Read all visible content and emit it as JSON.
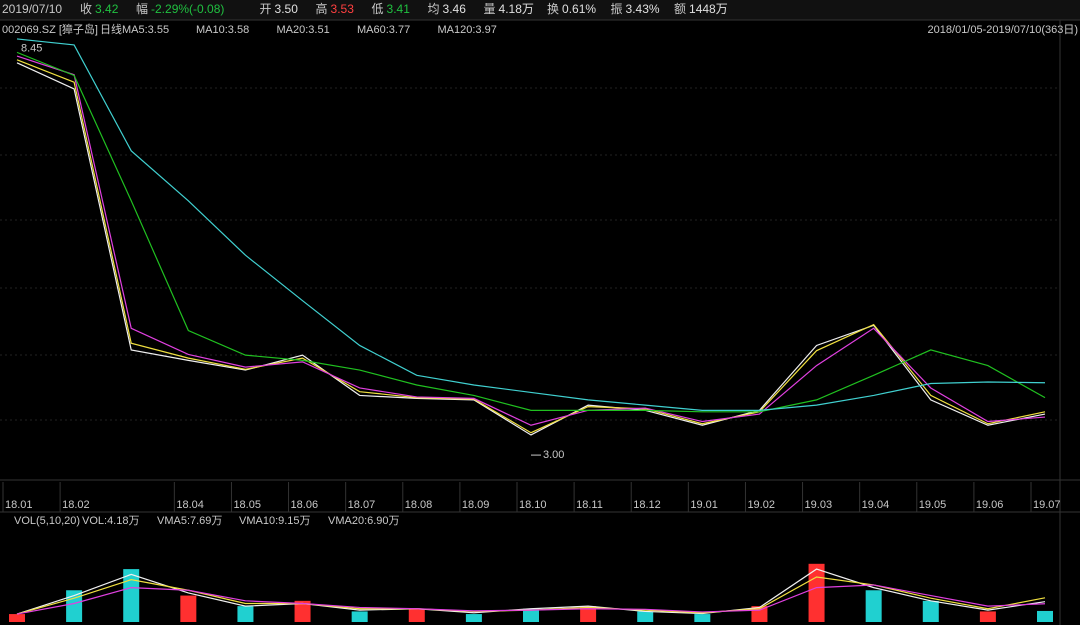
{
  "header": {
    "date": "2019/07/10",
    "items": [
      {
        "label": "收",
        "value": "3.42",
        "color": "#20c040"
      },
      {
        "label": "幅",
        "value": "-2.29%(-0.08)",
        "color": "#20c040"
      },
      {
        "label": "开",
        "value": "3.50",
        "color": "#e0e0e0"
      },
      {
        "label": "高",
        "value": "3.53",
        "color": "#ff4040"
      },
      {
        "label": "低",
        "value": "3.41",
        "color": "#20c040"
      },
      {
        "label": "均",
        "value": "3.46",
        "color": "#e0e0e0"
      },
      {
        "label": "量",
        "value": "4.18万",
        "color": "#e0e0e0"
      },
      {
        "label": "换",
        "value": "0.61%",
        "color": "#e0e0e0"
      },
      {
        "label": "振",
        "value": "3.43%",
        "color": "#e0e0e0"
      },
      {
        "label": "额",
        "value": "1448万",
        "color": "#e0e0e0"
      }
    ]
  },
  "chart_data": [
    {
      "type": "line",
      "title": "002069.SZ [獐子岛]",
      "period": "日线",
      "range": "2018/01/05-2019/07/10(363日)",
      "categories": [
        "18.01",
        "18.02",
        null,
        "18.04",
        "18.05",
        "18.06",
        "18.07",
        "18.08",
        "18.09",
        "18.10",
        "18.11",
        "18.12",
        "19.01",
        "19.02",
        "19.03",
        "19.04",
        "19.05",
        "19.06",
        "19.07"
      ],
      "ylim": [
        2.8,
        8.7
      ],
      "series": [
        {
          "name": "MA5:3.55",
          "color": "#f0f0f0",
          "values": [
            8.26,
            7.91,
            4.41,
            4.27,
            4.14,
            4.34,
            3.8,
            3.76,
            3.74,
            3.27,
            3.67,
            3.6,
            3.4,
            3.6,
            4.47,
            4.74,
            3.74,
            3.4,
            3.55
          ]
        },
        {
          "name": "MA10:3.58",
          "color": "#f0e040",
          "values": [
            8.3,
            8.0,
            4.5,
            4.3,
            4.15,
            4.3,
            3.85,
            3.77,
            3.75,
            3.3,
            3.65,
            3.62,
            3.42,
            3.58,
            4.4,
            4.75,
            3.8,
            3.42,
            3.58
          ]
        },
        {
          "name": "MA20:3.51",
          "color": "#e040e0",
          "values": [
            8.35,
            8.1,
            4.7,
            4.35,
            4.18,
            4.25,
            3.9,
            3.78,
            3.76,
            3.4,
            3.6,
            3.63,
            3.45,
            3.55,
            4.2,
            4.7,
            3.9,
            3.45,
            3.51
          ]
        },
        {
          "name": "MA60:3.77",
          "color": "#20c020",
          "values": [
            8.4,
            8.09,
            6.41,
            4.67,
            4.34,
            4.27,
            4.14,
            3.94,
            3.8,
            3.6,
            3.6,
            3.6,
            3.58,
            3.58,
            3.74,
            4.07,
            4.41,
            4.2,
            3.77
          ]
        },
        {
          "name": "MA120:3.97",
          "color": "#40d0d0",
          "values": [
            8.58,
            8.5,
            7.08,
            6.41,
            5.68,
            5.07,
            4.47,
            4.07,
            3.94,
            3.84,
            3.74,
            3.67,
            3.6,
            3.6,
            3.67,
            3.8,
            3.96,
            3.98,
            3.97
          ]
        }
      ],
      "annotations": [
        {
          "x": "18.01",
          "y": 8.45,
          "label": "8.45"
        },
        {
          "x": "18.10",
          "y": 3.0,
          "label": "3.00"
        }
      ]
    },
    {
      "type": "bar",
      "title": "VOL(5,10,20)",
      "ylim": [
        0,
        31
      ],
      "series": [
        {
          "name": "VOL:4.18万",
          "colors": [
            "#ff3030",
            "#20d0d0",
            "#20d0d0",
            "#ff3030",
            "#20d0d0",
            "#ff3030",
            "#20d0d0",
            "#ff3030",
            "#20d0d0",
            "#20d0d0",
            "#ff3030",
            "#20d0d0",
            "#20d0d0",
            "#ff3030",
            "#ff3030",
            "#20d0d0",
            "#20d0d0",
            "#ff3030",
            "#20d0d0"
          ],
          "values": [
            3,
            12,
            20,
            10,
            6,
            8,
            4,
            5,
            3,
            5,
            6,
            4,
            3,
            6,
            22,
            12,
            8,
            4,
            4.18
          ]
        },
        {
          "name": "VMA5:7.69万",
          "color": "#f0f0f0",
          "values": [
            3,
            10,
            18,
            11,
            6,
            7,
            4.5,
            5,
            3.5,
            5,
            6,
            4,
            3.2,
            5.5,
            20,
            13,
            8,
            4.5,
            7.69
          ]
        },
        {
          "name": "VMA10:9.15万",
          "color": "#f0e040",
          "values": [
            3,
            9,
            16,
            12,
            7,
            7,
            5,
            5,
            4,
            4.5,
            5.5,
            4.5,
            3.5,
            5,
            17,
            14,
            9,
            5,
            9.15
          ]
        },
        {
          "name": "VMA20:6.90万",
          "color": "#e040e0",
          "values": [
            3,
            7,
            13,
            12,
            8,
            7,
            5.5,
            5,
            4.2,
            4.5,
            5,
            4.8,
            3.8,
            4.5,
            13,
            14,
            10,
            6,
            6.9
          ]
        }
      ]
    }
  ]
}
